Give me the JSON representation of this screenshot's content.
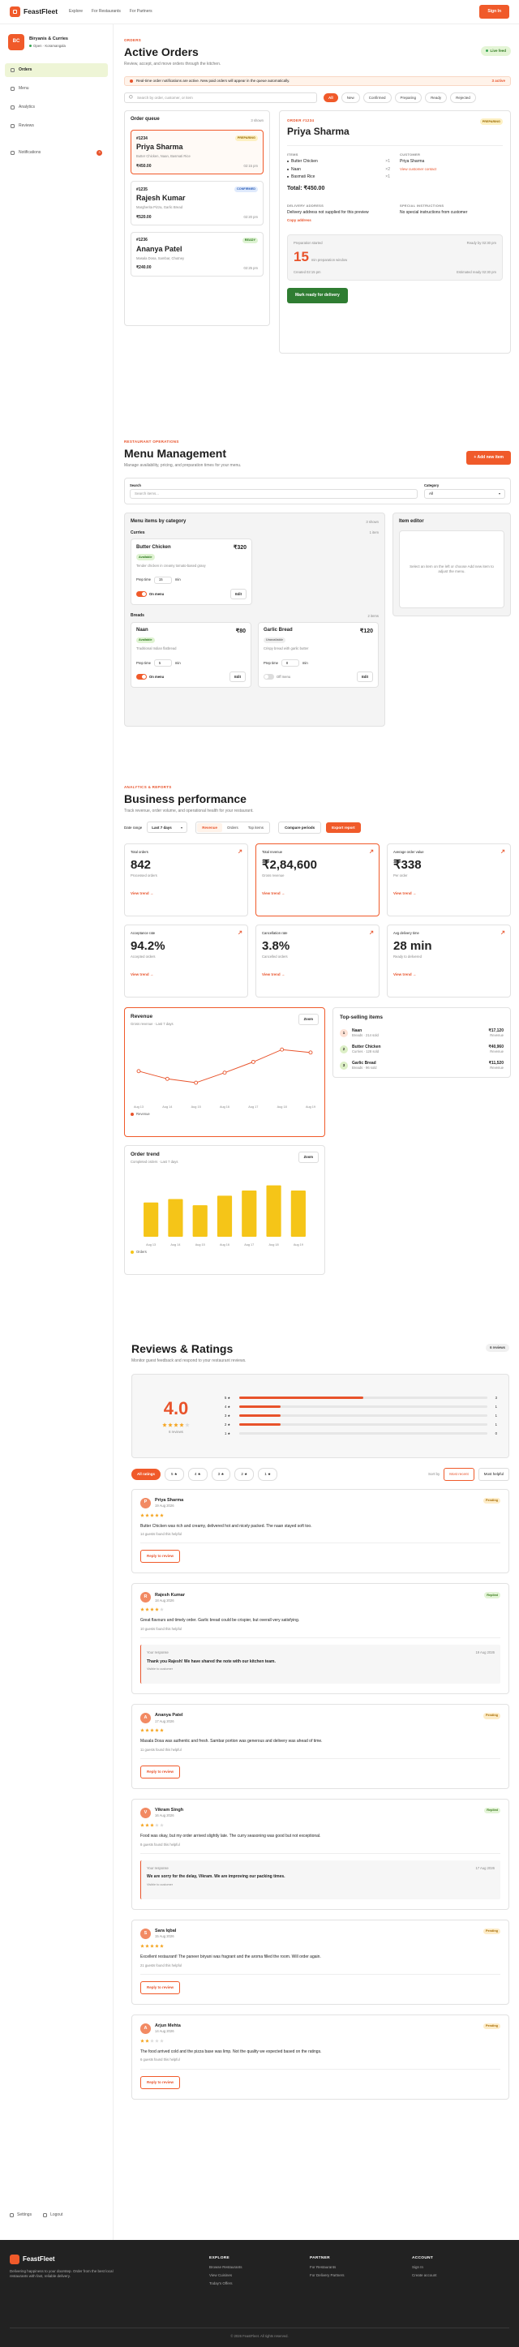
{
  "header": {
    "brand": "FeastFleet",
    "nav": [
      "Explore",
      "For Restaurants",
      "For Partners"
    ],
    "sign_in": "Sign In"
  },
  "sidebar": {
    "initials": "BC",
    "name": "Biryanis & Curries",
    "status": "Open · Koramangala",
    "nav": [
      "Orders",
      "Menu",
      "Analytics",
      "Reviews",
      "Notifications"
    ],
    "badge": "3",
    "bottom": [
      "Settings",
      "Logout"
    ]
  },
  "orders": {
    "eyebrow": "ORDERS",
    "title": "Active Orders",
    "subtitle": "Review, accept, and move orders through the kitchen.",
    "live": "Live feed",
    "alert": "Real-time order notifications are active. New paid orders will appear in the queue automatically.",
    "alert_count": "3 active",
    "search_placeholder": "Search by order, customer, or item",
    "filters": [
      "All",
      "New",
      "Confirmed",
      "Preparing",
      "Ready",
      "Rejected"
    ],
    "queue": {
      "title": "Order queue",
      "count": "3 shown",
      "items": [
        {
          "id": "#1234",
          "status": "PREPARING",
          "name": "Priya Sharma",
          "items": "Butter Chicken, Naan, Basmati Rice",
          "total": "₹450.00",
          "time": "02:15 pm"
        },
        {
          "id": "#1235",
          "status": "CONFIRMED",
          "name": "Rajesh Kumar",
          "items": "Margherita Pizza, Garlic Bread",
          "total": "₹520.00",
          "time": "02:20 pm"
        },
        {
          "id": "#1236",
          "status": "READY",
          "name": "Ananya Patel",
          "items": "Masala Dosa, Sambar, Chutney",
          "total": "₹240.00",
          "time": "02:25 pm"
        }
      ]
    },
    "detail": {
      "label": "ORDER #1234",
      "status": "PREPARING",
      "name": "Priya Sharma",
      "items_title": "ITEMS",
      "items": [
        "Butter Chicken",
        "Naan",
        "Basmati Rice"
      ],
      "quantities": [
        "×1",
        "×2",
        "×1"
      ],
      "total": "Total: ₹450.00",
      "customer_title": "CUSTOMER",
      "customer": "Priya Sharma",
      "contact": "View customer contact",
      "address_title": "DELIVERY ADDRESS",
      "address": "Delivery address not supplied for this preview",
      "copy": "Copy address",
      "instructions_title": "SPECIAL INSTRUCTIONS",
      "instructions": "No special instructions from customer",
      "prep": {
        "title": "Preparation started",
        "ready": "Ready by 02:30 pm",
        "minutes": "15",
        "unit": "min preparation window",
        "created": "Created 02:15 pm",
        "estimated": "Estimated ready 02:30 pm"
      },
      "action": "Mark ready for delivery"
    }
  },
  "menu": {
    "eyebrow": "RESTAURANT OPERATIONS",
    "title": "Menu Management",
    "subtitle": "Manage availability, pricing, and preparation times for your menu.",
    "add": "+ Add new item",
    "search_label": "Search",
    "search_placeholder": "Search items...",
    "category_label": "Category",
    "category_value": "All",
    "list_title": "Menu items by category",
    "list_count": "3 shown",
    "groups": [
      {
        "name": "Curries",
        "count": "1 item",
        "items": [
          {
            "name": "Butter Chicken",
            "price": "₹320",
            "status": "Available",
            "desc": "Tender chicken in creamy tomato-based gravy",
            "prep_label": "Prep time",
            "prep": "15",
            "unit": "min",
            "toggle": "On menu",
            "edit": "Edit",
            "on_menu": true
          }
        ]
      },
      {
        "name": "Breads",
        "count": "2 items",
        "items": [
          {
            "name": "Naan",
            "price": "₹80",
            "status": "Available",
            "desc": "Traditional Indian flatbread",
            "prep_label": "Prep time",
            "prep": "5",
            "unit": "min",
            "toggle": "On menu",
            "edit": "Edit",
            "on_menu": true
          },
          {
            "name": "Garlic Bread",
            "price": "₹120",
            "status": "Unavailable",
            "desc": "Crispy bread with garlic butter",
            "prep_label": "Prep time",
            "prep": "8",
            "unit": "min",
            "toggle": "Off menu",
            "edit": "Edit",
            "on_menu": false
          }
        ]
      }
    ],
    "editor_title": "Item editor",
    "editor_text": "Select an item on the left or choose Add new item to adjust the menu."
  },
  "analytics": {
    "eyebrow": "ANALYTICS & REPORTS",
    "title": "Business performance",
    "subtitle": "Track revenue, order volume, and operational health for your restaurant.",
    "date_label": "Date range",
    "date_value": "Last 7 days",
    "tabs": [
      "Revenue",
      "Orders",
      "Top items"
    ],
    "compare": "Compare periods",
    "export": "Export report",
    "kpis": [
      {
        "label": "Total orders",
        "value": "842",
        "note": "Processed orders",
        "link": "View trend →"
      },
      {
        "label": "Total revenue",
        "value": "₹2,84,600",
        "note": "Gross revenue",
        "link": "View trend →"
      },
      {
        "label": "Average order value",
        "value": "₹338",
        "note": "Per order",
        "link": "View trend →"
      },
      {
        "label": "Acceptance rate",
        "value": "94.2%",
        "note": "Accepted orders",
        "link": "View trend →"
      },
      {
        "label": "Cancellation rate",
        "value": "3.8%",
        "note": "Cancelled orders",
        "link": "View trend →"
      },
      {
        "label": "Avg delivery time",
        "value": "28 min",
        "note": "Ready to delivered",
        "link": "View trend →"
      }
    ],
    "revenue_chart": {
      "type": "line",
      "title": "Revenue",
      "subtitle": "Gross revenue · Last 7 days",
      "zoom": "Zoom",
      "categories": [
        "Aug 13",
        "Aug 14",
        "Aug 15",
        "Aug 16",
        "Aug 17",
        "Aug 18",
        "Aug 19"
      ],
      "series": [
        {
          "name": "Revenue",
          "color": "#e8532b",
          "values": [
            38000,
            33000,
            30500,
            37000,
            44000,
            52000,
            50100
          ]
        }
      ],
      "ylim": [
        20000,
        60000
      ]
    },
    "orders_chart": {
      "type": "bar",
      "title": "Order trend",
      "subtitle": "Completed orders · Last 7 days",
      "zoom": "Zoom",
      "categories": [
        "Aug 13",
        "Aug 14",
        "Aug 15",
        "Aug 16",
        "Aug 17",
        "Aug 18",
        "Aug 19"
      ],
      "series": [
        {
          "name": "Orders",
          "color": "#f5c518",
          "values": [
            100,
            110,
            92,
            120,
            135,
            150,
            135
          ]
        }
      ],
      "ylim": [
        0,
        180
      ]
    },
    "top_items": {
      "title": "Top-selling items",
      "items": [
        {
          "rank": "1",
          "name": "Naan",
          "meta": "Breads · 214 sold",
          "amount": "₹17,120",
          "note": "Revenue"
        },
        {
          "rank": "2",
          "name": "Butter Chicken",
          "meta": "Curries · 128 sold",
          "amount": "₹40,960",
          "note": "Revenue"
        },
        {
          "rank": "3",
          "name": "Garlic Bread",
          "meta": "Breads · 96 sold",
          "amount": "₹11,520",
          "note": "Revenue"
        }
      ]
    }
  },
  "reviews": {
    "title": "Reviews & Ratings",
    "subtitle": "Monitor guest feedback and respond to your restaurant reviews.",
    "badge": "6 reviews",
    "average": {
      "value": 4,
      "label": "4.0"
    },
    "count": "6 reviews",
    "distribution": [
      {
        "label": "5 ★",
        "count": 3
      },
      {
        "label": "4 ★",
        "count": 1
      },
      {
        "label": "3 ★",
        "count": 1
      },
      {
        "label": "2 ★",
        "count": 1
      },
      {
        "label": "1 ★",
        "count": 0
      }
    ],
    "filters": [
      "All ratings",
      "5 ★",
      "4 ★",
      "3 ★",
      "2 ★",
      "1 ★"
    ],
    "sort_label": "Sort by",
    "sorts": [
      "Most recent",
      "Most helpful"
    ],
    "items": [
      {
        "initial": "P",
        "name": "Priya Sharma",
        "date": "19 Aug 2026",
        "status": "Pending",
        "rating": 5,
        "text": "Butter Chicken was rich and creamy, delivered hot and nicely packed. The naan stayed soft too.",
        "helpful": "14 guests found this helpful",
        "reply": "Reply to review"
      },
      {
        "initial": "R",
        "name": "Rajesh Kumar",
        "date": "18 Aug 2026",
        "status": "Replied",
        "rating": 4,
        "text": "Great flavours and timely order. Garlic bread could be crispier, but overall very satisfying.",
        "helpful": "10 guests found this helpful",
        "response": {
          "label": "Your response",
          "date": "19 Aug 2026",
          "text": "Thank you Rajesh! We have shared the note with our kitchen team.",
          "note": "Visible to customer"
        }
      },
      {
        "initial": "A",
        "name": "Ananya Patel",
        "date": "17 Aug 2026",
        "status": "Pending",
        "rating": 5,
        "text": "Masala Dosa was authentic and fresh. Sambar portion was generous and delivery was ahead of time.",
        "helpful": "11 guests found this helpful",
        "reply": "Reply to review"
      },
      {
        "initial": "V",
        "name": "Vikram Singh",
        "date": "16 Aug 2026",
        "status": "Replied",
        "rating": 3,
        "text": "Food was okay, but my order arrived slightly late. The curry seasoning was good but not exceptional.",
        "helpful": "8 guests found this helpful",
        "response": {
          "label": "Your response",
          "date": "17 Aug 2026",
          "text": "We are sorry for the delay, Vikram. We are improving our packing times.",
          "note": "Visible to customer"
        }
      },
      {
        "initial": "S",
        "name": "Sara Iqbal",
        "date": "15 Aug 2026",
        "status": "Pending",
        "rating": 5,
        "text": "Excellent restaurant! The paneer biryani was fragrant and the aroma filled the room. Will order again.",
        "helpful": "21 guests found this helpful",
        "reply": "Reply to review"
      },
      {
        "initial": "A",
        "name": "Arjun Mehta",
        "date": "14 Aug 2026",
        "status": "Pending",
        "rating": 2,
        "text": "The food arrived cold and the pizza base was limp. Not the quality we expected based on the ratings.",
        "helpful": "6 guests found this helpful",
        "reply": "Reply to review"
      }
    ]
  },
  "footer": {
    "brand": "FeastFleet",
    "tagline": "Delivering happiness to your doorstep. Order from the best local restaurants with fast, reliable delivery.",
    "columns": [
      {
        "title": "EXPLORE",
        "links": [
          "Browse Restaurants",
          "View Cuisines",
          "Today's Offers"
        ]
      },
      {
        "title": "PARTNER",
        "links": [
          "For Restaurants",
          "For Delivery Partners"
        ]
      },
      {
        "title": "ACCOUNT",
        "links": [
          "Sign In",
          "Create account"
        ]
      }
    ],
    "copyright": "© 2026 FeastFleet. All rights reserved."
  }
}
